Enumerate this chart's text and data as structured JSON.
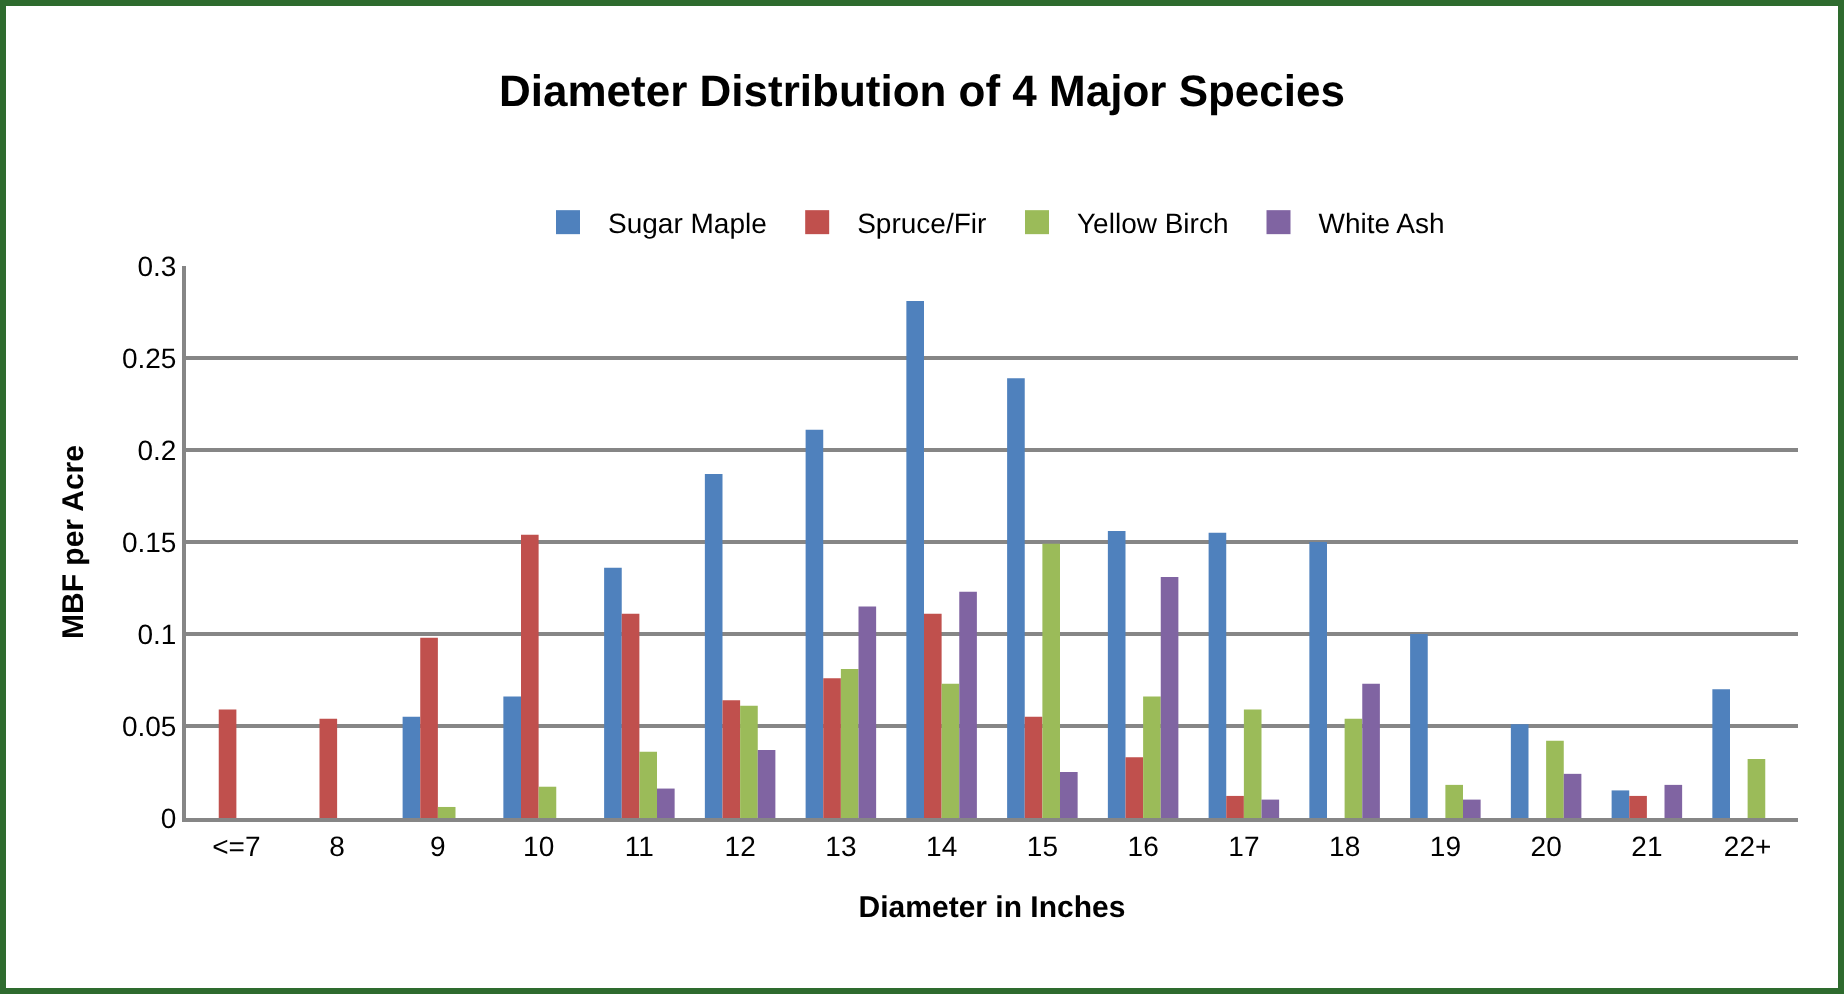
{
  "chart_data": {
    "type": "bar",
    "title": "Diameter Distribution of 4 Major Species",
    "xlabel": "Diameter in Inches",
    "ylabel": "MBF per Acre",
    "categories": [
      "<=7",
      "8",
      "9",
      "10",
      "11",
      "12",
      "13",
      "14",
      "15",
      "16",
      "17",
      "18",
      "19",
      "20",
      "21",
      "22+"
    ],
    "series": [
      {
        "name": "Sugar Maple",
        "color": "#4f81bd",
        "values": [
          0,
          0,
          0.055,
          0.066,
          0.136,
          0.187,
          0.211,
          0.281,
          0.239,
          0.156,
          0.155,
          0.15,
          0.1,
          0.051,
          0.015,
          0.07
        ]
      },
      {
        "name": "Spruce/Fir",
        "color": "#c0504d",
        "values": [
          0.059,
          0.054,
          0.098,
          0.154,
          0.111,
          0.064,
          0.076,
          0.111,
          0.055,
          0.033,
          0.012,
          0,
          0,
          0,
          0.012,
          0
        ]
      },
      {
        "name": "Yellow Birch",
        "color": "#9bbb59",
        "values": [
          0,
          0,
          0.006,
          0.017,
          0.036,
          0.061,
          0.081,
          0.073,
          0.149,
          0.066,
          0.059,
          0.054,
          0.018,
          0.042,
          0,
          0.032
        ]
      },
      {
        "name": "White Ash",
        "color": "#8064a2",
        "values": [
          0,
          0,
          0,
          0,
          0.016,
          0.037,
          0.115,
          0.123,
          0.025,
          0.131,
          0.01,
          0.073,
          0.01,
          0.024,
          0.018,
          0
        ]
      }
    ],
    "ylim": [
      0,
      0.3
    ],
    "yticks": [
      0,
      0.05,
      0.1,
      0.15,
      0.2,
      0.25,
      0.3
    ],
    "grid": "y",
    "legend": "top"
  }
}
